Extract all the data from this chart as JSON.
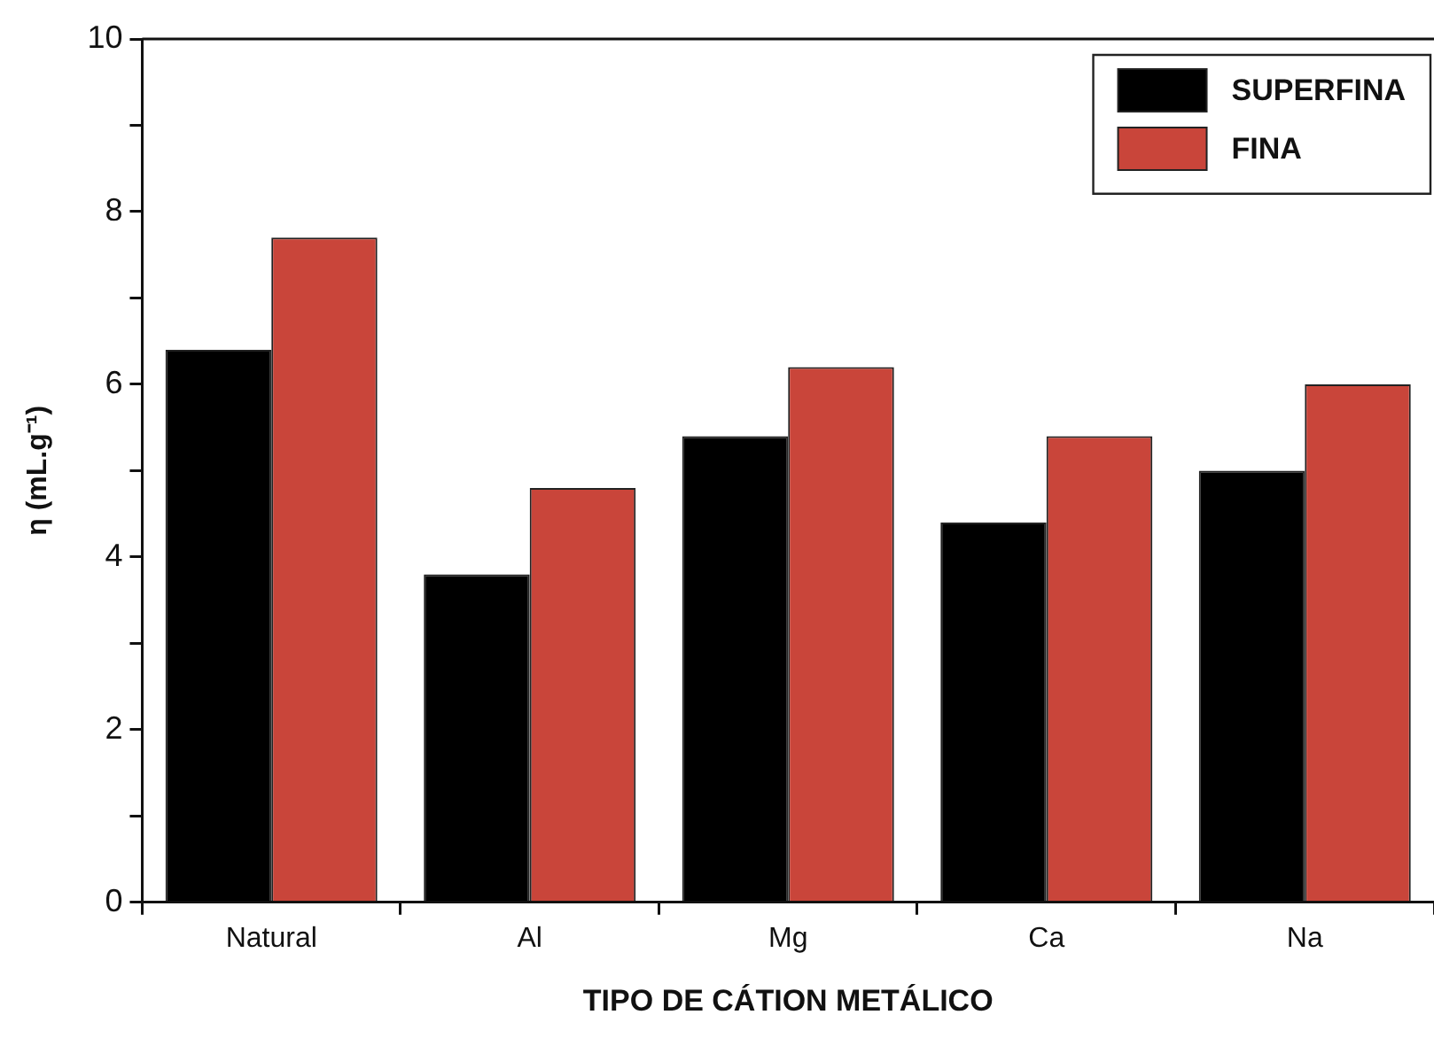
{
  "chart_data": {
    "type": "bar",
    "xlabel": "TIPO DE CÁTION METÁLICO",
    "ylabel": "η (mL.g⁻¹)",
    "categories": [
      "Natural",
      "Al",
      "Mg",
      "Ca",
      "Na"
    ],
    "series": [
      {
        "name": "SUPERFINA",
        "color": "#000000",
        "values": [
          6.4,
          3.8,
          5.4,
          4.4,
          5.0
        ]
      },
      {
        "name": "FINA",
        "color": "#c9453a",
        "values": [
          7.7,
          4.8,
          6.2,
          5.4,
          6.0
        ]
      }
    ],
    "ylim": [
      0,
      10
    ],
    "yticks": [
      0,
      {
        "value": 1,
        "label": null
      },
      2,
      {
        "value": 3,
        "label": null
      },
      4,
      {
        "value": 5,
        "label": null
      },
      6,
      {
        "value": 7,
        "label": null
      },
      8,
      {
        "value": 9,
        "label": null
      },
      10
    ],
    "grid": false,
    "legend": "top right"
  }
}
